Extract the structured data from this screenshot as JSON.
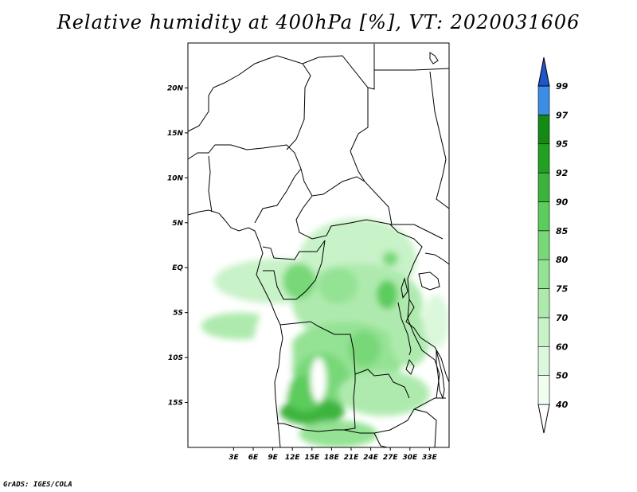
{
  "title": "Relative humidity at 400hPa [%], VT: 2020031606",
  "credit": "GrADS: IGES/COLA",
  "map": {
    "lon_range": [
      -4,
      36
    ],
    "lat_range": [
      -20,
      25
    ],
    "lat_ticks": [
      {
        "value": 20,
        "label": "20N"
      },
      {
        "value": 15,
        "label": "15N"
      },
      {
        "value": 10,
        "label": "10N"
      },
      {
        "value": 5,
        "label": "5N"
      },
      {
        "value": 0,
        "label": "EQ"
      },
      {
        "value": -5,
        "label": "5S"
      },
      {
        "value": -10,
        "label": "10S"
      },
      {
        "value": -15,
        "label": "15S"
      }
    ],
    "lon_ticks": [
      {
        "value": 3,
        "label": "3E"
      },
      {
        "value": 6,
        "label": "6E"
      },
      {
        "value": 9,
        "label": "9E"
      },
      {
        "value": 12,
        "label": "12E"
      },
      {
        "value": 15,
        "label": "15E"
      },
      {
        "value": 18,
        "label": "18E"
      },
      {
        "value": 21,
        "label": "21E"
      },
      {
        "value": 24,
        "label": "24E"
      },
      {
        "value": 27,
        "label": "27E"
      },
      {
        "value": 30,
        "label": "30E"
      },
      {
        "value": 33,
        "label": "33E"
      }
    ]
  },
  "colorbar": {
    "levels": [
      {
        "label": "40",
        "color": "#f0fff0"
      },
      {
        "label": "50",
        "color": "#dcf8dc"
      },
      {
        "label": "60",
        "color": "#c8f2c8"
      },
      {
        "label": "70",
        "color": "#aeeaae"
      },
      {
        "label": "75",
        "color": "#94e294"
      },
      {
        "label": "80",
        "color": "#78d878"
      },
      {
        "label": "85",
        "color": "#5ccc5c"
      },
      {
        "label": "90",
        "color": "#3cb43c"
      },
      {
        "label": "92",
        "color": "#22a022"
      },
      {
        "label": "95",
        "color": "#138a13"
      },
      {
        "label": "97",
        "color": "#3a8ee6"
      },
      {
        "label": "99",
        "color": "#2266d8"
      }
    ],
    "top_color": "#1e56c8",
    "bottom_color": "#ffffff"
  },
  "humidity_blobs": [
    {
      "lon": 10,
      "lat": -1.5,
      "rx_deg": 10,
      "ry_deg": 2.5,
      "level": 2
    },
    {
      "lon": 22,
      "lat": 1,
      "rx_deg": 9,
      "ry_deg": 4.5,
      "level": 2
    },
    {
      "lon": 22,
      "lat": -4,
      "rx_deg": 10,
      "ry_deg": 4.5,
      "level": 3
    },
    {
      "lon": 13,
      "lat": -1.5,
      "rx_deg": 2.5,
      "ry_deg": 2,
      "level": 5
    },
    {
      "lon": 19,
      "lat": -2,
      "rx_deg": 3,
      "ry_deg": 2,
      "level": 4
    },
    {
      "lon": 26.5,
      "lat": -3,
      "rx_deg": 1.6,
      "ry_deg": 1.6,
      "level": 6
    },
    {
      "lon": 27,
      "lat": 1,
      "rx_deg": 1.2,
      "ry_deg": 0.8,
      "level": 5
    },
    {
      "lon": 4,
      "lat": -6.5,
      "rx_deg": 6,
      "ry_deg": 1.5,
      "level": 3
    },
    {
      "lon": 20,
      "lat": -10,
      "rx_deg": 9,
      "ry_deg": 4,
      "level": 4
    },
    {
      "lon": 16.5,
      "lat": -13,
      "rx_deg": 4.5,
      "ry_deg": 3.5,
      "level": 5
    },
    {
      "lon": 15,
      "lat": -16,
      "rx_deg": 5,
      "ry_deg": 1.5,
      "level": 7
    },
    {
      "lon": 14,
      "lat": -14,
      "rx_deg": 3,
      "ry_deg": 2,
      "level": 6
    },
    {
      "lon": 19,
      "lat": -18.5,
      "rx_deg": 6,
      "ry_deg": 1.5,
      "level": 4
    },
    {
      "lon": 26,
      "lat": -14,
      "rx_deg": 7,
      "ry_deg": 2.5,
      "level": 3
    },
    {
      "lon": 30,
      "lat": -8,
      "rx_deg": 3,
      "ry_deg": 3,
      "level": 3
    },
    {
      "lon": 34,
      "lat": -6,
      "rx_deg": 2,
      "ry_deg": 3,
      "level": 1
    },
    {
      "lon": 23,
      "lat": -9,
      "rx_deg": 2.5,
      "ry_deg": 2,
      "level": 5
    }
  ],
  "dry_blobs": [
    {
      "lon": 16,
      "lat": -12.5,
      "rx_deg": 1.2,
      "ry_deg": 2.5
    },
    {
      "lon": 9,
      "lat": -10,
      "rx_deg": 3,
      "ry_deg": 6
    }
  ]
}
